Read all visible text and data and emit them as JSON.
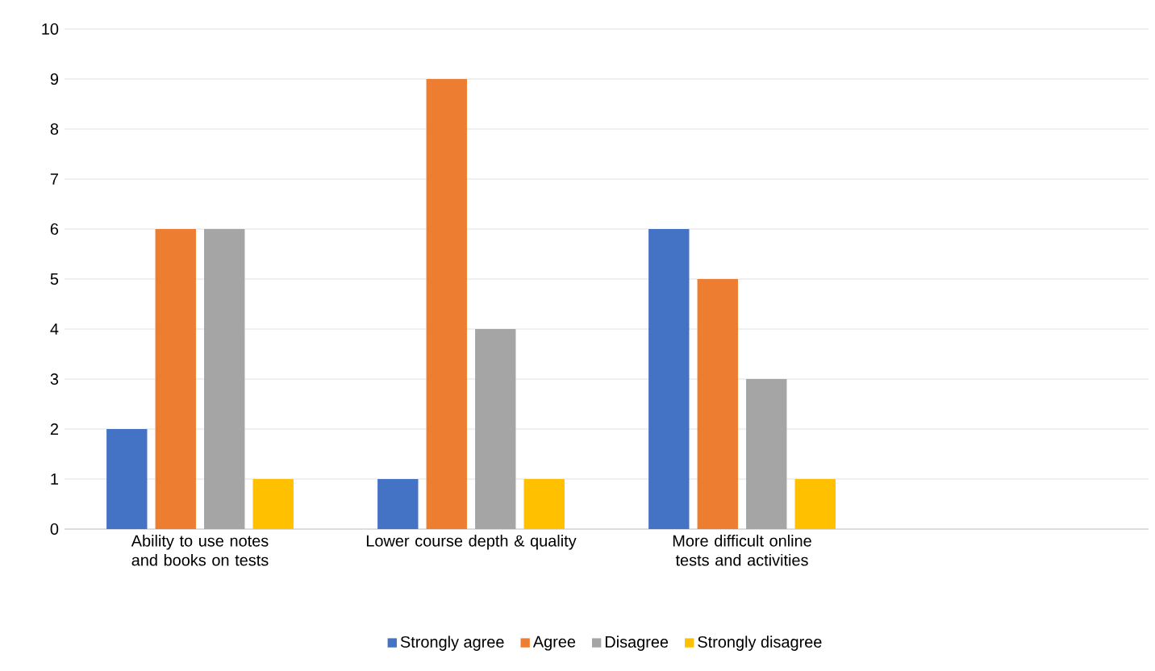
{
  "chart_data": {
    "type": "bar",
    "categories": [
      "Ability to use notes and books on tests",
      "Lower course depth & quality",
      "More difficult online tests and activities",
      null
    ],
    "series": [
      {
        "name": "Strongly agree",
        "color": "#4472c4",
        "values": [
          2,
          1,
          6,
          null
        ]
      },
      {
        "name": "Agree",
        "color": "#ed7d31",
        "values": [
          6,
          9,
          5,
          null
        ]
      },
      {
        "name": "Disagree",
        "color": "#a5a5a5",
        "values": [
          6,
          4,
          3,
          null
        ]
      },
      {
        "name": "Strongly disagree",
        "color": "#ffc000",
        "values": [
          1,
          1,
          1,
          null
        ]
      }
    ],
    "ylim": [
      0,
      10
    ],
    "yticks": [
      0,
      1,
      2,
      3,
      4,
      5,
      6,
      7,
      8,
      9,
      10
    ],
    "grid": "y",
    "legend": "bottom"
  }
}
